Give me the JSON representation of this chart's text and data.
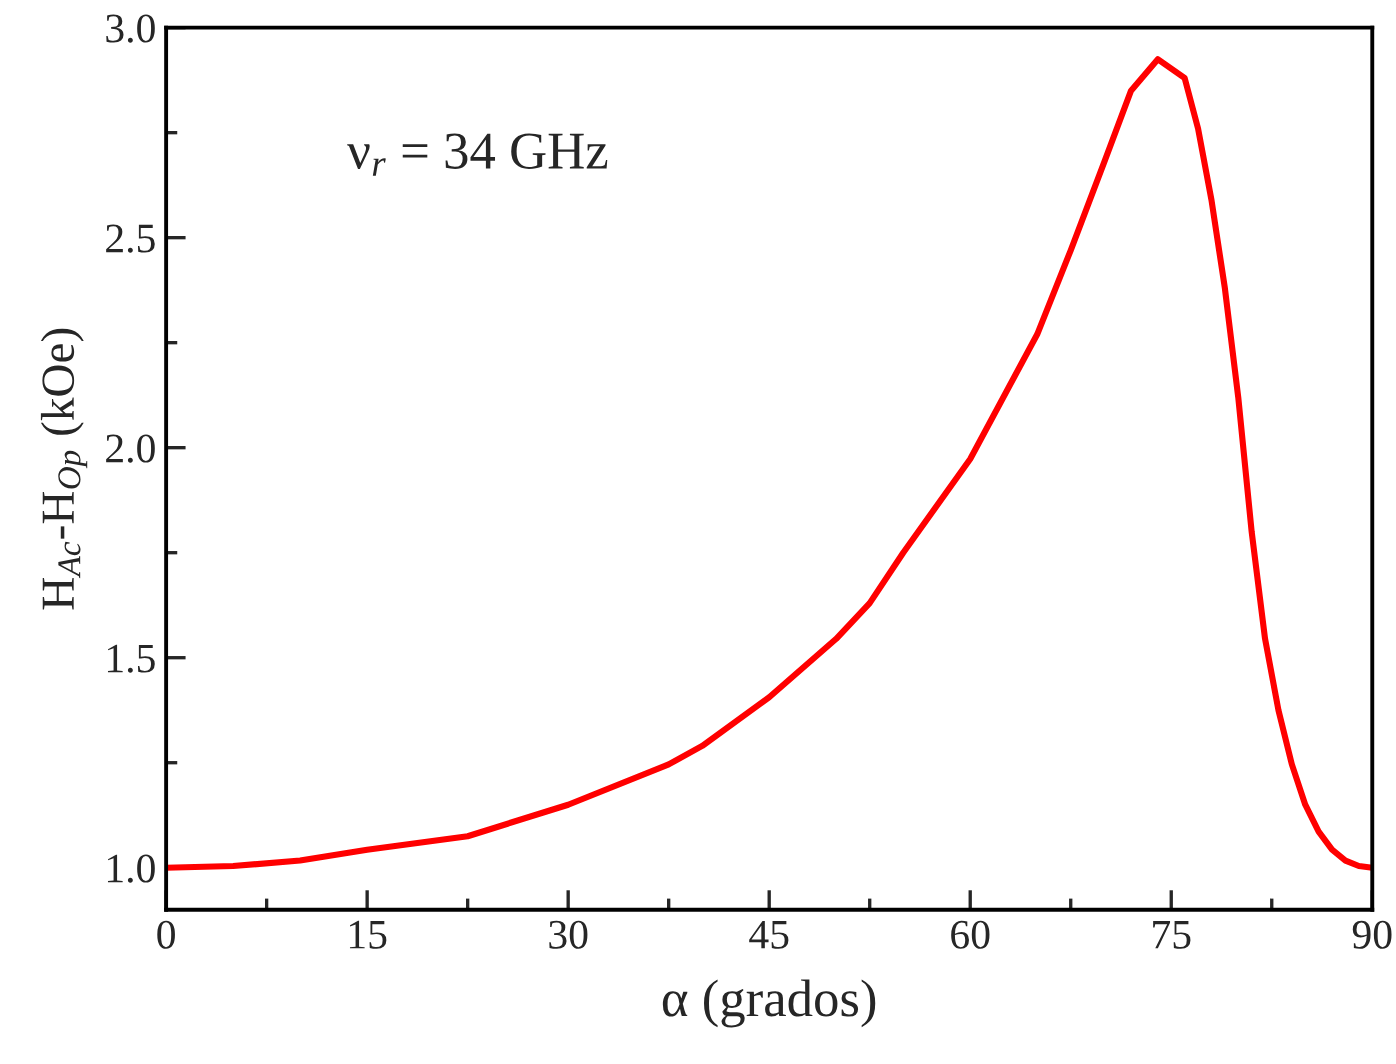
{
  "chart_data": {
    "type": "line",
    "xlabel": "α (grados)",
    "ylabel": "H$_{Ac}$-H$_{Op}$ (kOe)",
    "annotations": [
      "ν$_{r}$ = 34 GHz"
    ],
    "x": [
      0,
      5,
      10,
      15,
      22.5,
      30,
      37.5,
      40,
      45,
      50,
      52.5,
      55,
      60,
      65,
      67.5,
      70,
      72,
      74,
      76,
      77,
      78,
      79,
      80,
      81,
      82,
      83,
      84,
      85,
      86,
      87,
      88,
      89,
      90
    ],
    "series": [
      {
        "color": "#ff0000",
        "values": [
          1.0,
          1.004,
          1.017,
          1.043,
          1.075,
          1.15,
          1.246,
          1.29,
          1.406,
          1.545,
          1.63,
          1.75,
          1.973,
          2.27,
          2.47,
          2.68,
          2.85,
          2.925,
          2.88,
          2.76,
          2.59,
          2.38,
          2.12,
          1.8,
          1.545,
          1.375,
          1.246,
          1.15,
          1.086,
          1.043,
          1.017,
          1.004,
          1.0
        ]
      }
    ],
    "xlim": [
      0,
      90
    ],
    "xticks": [
      0,
      15,
      30,
      45,
      60,
      75,
      90
    ],
    "ylim": [
      0.9,
      3.0
    ],
    "yticks": [
      {
        "value": 1.0,
        "label": "1.0"
      },
      {
        "value": 1.5,
        "label": "1.5"
      },
      {
        "value": 2.0,
        "label": "2.0"
      },
      {
        "value": 2.5,
        "label": "2.5"
      },
      {
        "value": 3.0,
        "label": "3.0"
      }
    ],
    "grid": false,
    "legend": false,
    "marker": "none",
    "line_style": "solid"
  }
}
